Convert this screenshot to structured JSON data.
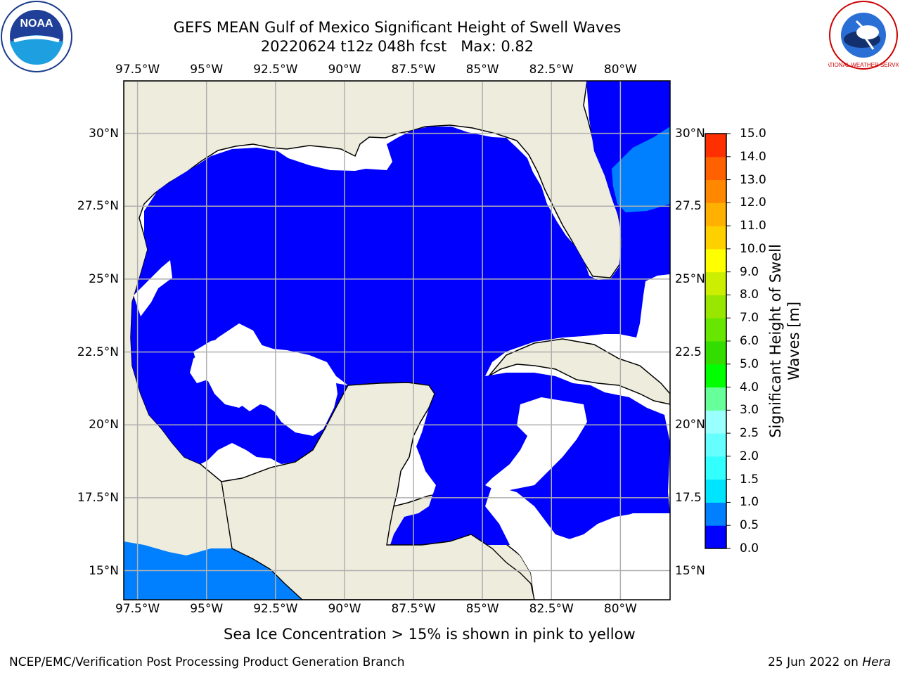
{
  "title": "GEFS MEAN Gulf of Mexico Significant Height of Swell Waves",
  "subtitle": "20220624 t12z 048h fcst   Max: 0.82",
  "map": {
    "lon_labels": [
      "97.5°W",
      "95°W",
      "92.5°W",
      "90°W",
      "87.5°W",
      "85°W",
      "82.5°W",
      "80°W"
    ],
    "lat_labels_left": [
      "30°N",
      "27.5°N",
      "25°N",
      "22.5°N",
      "20°N",
      "17.5°N",
      "15°N"
    ],
    "lat_labels_right": [
      "30°N",
      "27.5",
      "25°N",
      "22.5",
      "20°N",
      "17.5",
      "15°N"
    ],
    "lon_values": [
      -97.5,
      -95,
      -92.5,
      -90,
      -87.5,
      -85,
      -82.5,
      -80
    ],
    "lat_values": [
      30,
      27.5,
      25,
      22.5,
      20,
      17.5,
      15
    ],
    "extent": {
      "lon_min": -98,
      "lon_max": -78.2,
      "lat_min": 14,
      "lat_max": 31.8
    },
    "colors": {
      "land": "#eeecdc",
      "ocean_blue": "#0000ff",
      "ocean_light": "#0080ff",
      "no_data": "#ffffff",
      "coast": "#000000",
      "grid": "#b0b0b0"
    }
  },
  "colorbar": {
    "title": "Significant Height of Swell\nWaves [m]",
    "ticks": [
      "0.0",
      "0.5",
      "1.0",
      "1.5",
      "2.0",
      "2.5",
      "3.0",
      "4.0",
      "5.0",
      "6.0",
      "7.0",
      "8.0",
      "9.0",
      "10.0",
      "11.0",
      "12.0",
      "13.0",
      "14.0",
      "15.0"
    ],
    "colors": [
      "#0000ff",
      "#0080ff",
      "#00e5ff",
      "#33ffff",
      "#66ffff",
      "#99ffff",
      "#66ff99",
      "#00ff00",
      "#33dd00",
      "#66e600",
      "#99e600",
      "#ccee00",
      "#ffff00",
      "#ffd000",
      "#ffb000",
      "#ff8800",
      "#ff6000",
      "#ff3000",
      "#ff0000"
    ]
  },
  "caption": "Sea Ice Concentration > 15% is shown in pink to yellow",
  "footer": {
    "left": "NCEP/EMC/Verification Post Processing Product Generation Branch",
    "date": "25 Jun 2022 on",
    "host": "Hera"
  },
  "logos": {
    "left": "NOAA",
    "right": "NATIONAL WEATHER SERVICE"
  }
}
